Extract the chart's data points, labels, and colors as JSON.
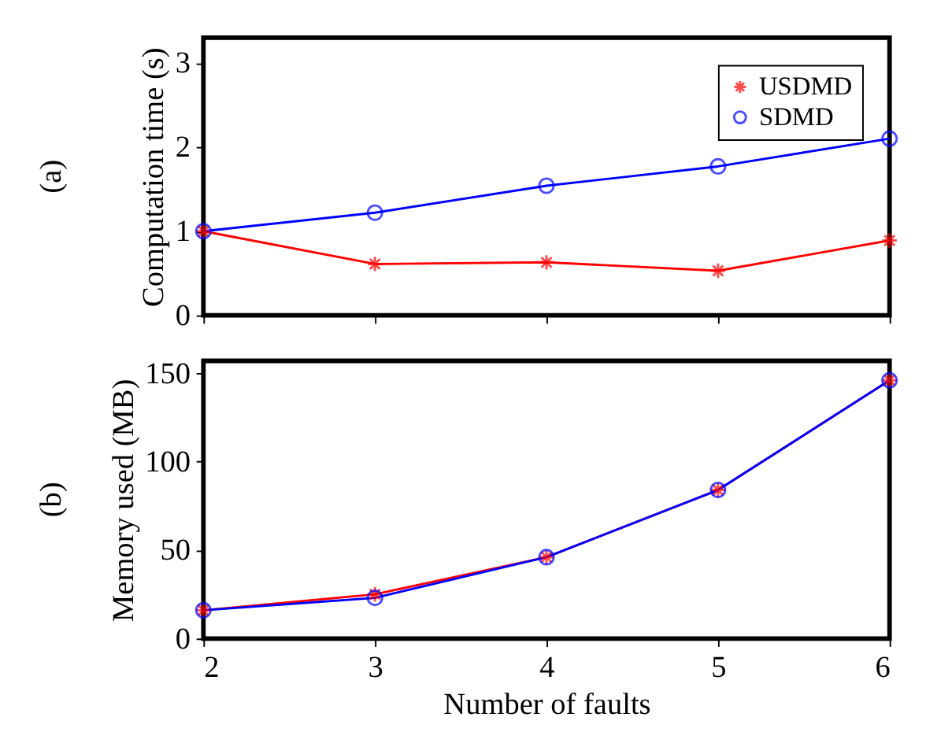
{
  "chart_data": [
    {
      "type": "line",
      "ylabel": "Computation time (s)",
      "annotations": [
        "(a)"
      ],
      "x": [
        2,
        3,
        4,
        5,
        6
      ],
      "xlim": [
        2,
        6
      ],
      "xticks": [
        2,
        3,
        4,
        5,
        6
      ],
      "ylim": [
        0,
        3.3
      ],
      "yticks": [
        0,
        1,
        2,
        3
      ],
      "tick_labels": "y",
      "legend": "top right",
      "grid": false,
      "series": [
        {
          "name": "USDMD",
          "color": "#ff0000",
          "marker": "cross",
          "values": [
            1.0,
            0.61,
            0.63,
            0.53,
            0.89
          ]
        },
        {
          "name": "SDMD",
          "color": "#0000ff",
          "marker": "circle",
          "values": [
            1.0,
            1.22,
            1.54,
            1.77,
            2.1
          ]
        }
      ]
    },
    {
      "type": "line",
      "xlabel": "Number of faults",
      "ylabel": "Memory used (MB)",
      "annotations": [
        "(b)"
      ],
      "x": [
        2,
        3,
        4,
        5,
        6
      ],
      "xlim": [
        2,
        6
      ],
      "xticks": [
        2,
        3,
        4,
        5,
        6
      ],
      "ylim": [
        0,
        157
      ],
      "yticks": [
        0,
        50,
        100,
        150
      ],
      "legend": false,
      "grid": false,
      "series": [
        {
          "name": "USDMD",
          "color": "#ff0000",
          "marker": "cross",
          "values": [
            16,
            25,
            46,
            84,
            146
          ]
        },
        {
          "name": "SDMD",
          "color": "#0000ff",
          "marker": "circle",
          "values": [
            16,
            23,
            46,
            84,
            146
          ]
        }
      ]
    }
  ]
}
